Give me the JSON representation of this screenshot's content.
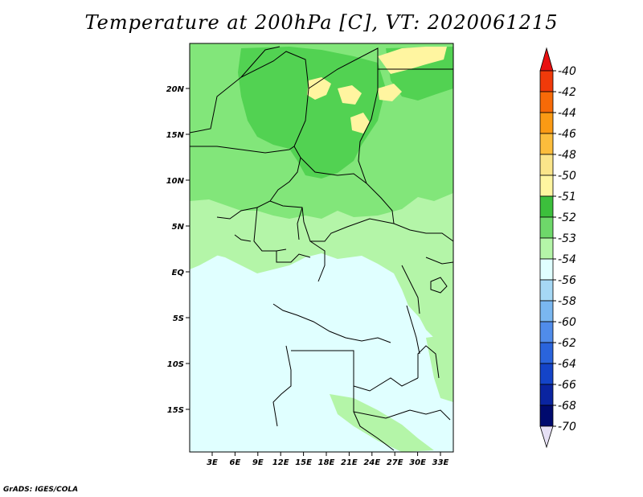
{
  "title": "Temperature at 200hPa [C], VT: 2020061215",
  "credit": "GrADS: IGES/COLA",
  "map": {
    "lat_labels": [
      "20N",
      "15N",
      "10N",
      "5N",
      "EQ",
      "5S",
      "10S",
      "15S"
    ],
    "lon_labels": [
      "3E",
      "6E",
      "9E",
      "12E",
      "15E",
      "18E",
      "21E",
      "24E",
      "27E",
      "30E",
      "33E"
    ],
    "colors": {
      "light_cyan": "#e0ffff",
      "pale_green": "#b4f5a8",
      "mid_green": "#82e67a",
      "green": "#52d252",
      "pale_yellow": "#fff5a0",
      "border": "#000000"
    }
  },
  "colorbar": {
    "labels": [
      "-40",
      "-42",
      "-44",
      "-46",
      "-48",
      "-50",
      "-51",
      "-52",
      "-53",
      "-54",
      "-56",
      "-58",
      "-60",
      "-62",
      "-64",
      "-66",
      "-68",
      "-70"
    ],
    "colors": [
      "#e81010",
      "#f03a0a",
      "#f76a08",
      "#fb9a14",
      "#fcbd3c",
      "#fbe58a",
      "#fff5a0",
      "#3cbf3c",
      "#6ed86a",
      "#b4f5a8",
      "#e0ffff",
      "#a6d8f5",
      "#7ab7f0",
      "#508cea",
      "#2a64dc",
      "#1444c8",
      "#0a24a0",
      "#000a6e",
      "#e6e0f5"
    ]
  }
}
